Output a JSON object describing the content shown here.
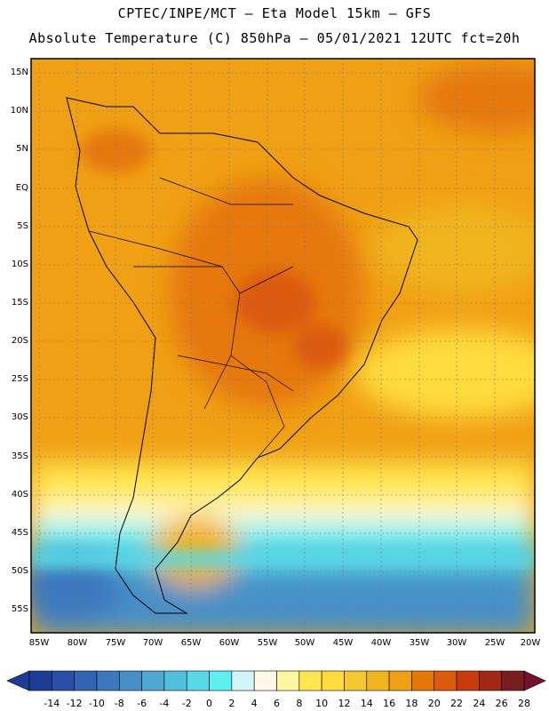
{
  "title_line1": "CPTEC/INPE/MCT –  Eta Model 15km – GFS",
  "title_line2": "Absolute Temperature (C) 850hPa – 05/01/2021 12UTC fct=20h",
  "lat_labels": [
    "15N",
    "10N",
    "5N",
    "EQ",
    "5S",
    "10S",
    "15S",
    "20S",
    "25S",
    "30S",
    "35S",
    "40S",
    "45S",
    "50S",
    "55S"
  ],
  "lon_labels": [
    "85W",
    "80W",
    "75W",
    "70W",
    "65W",
    "60W",
    "55W",
    "50W",
    "45W",
    "40W",
    "35W",
    "30W",
    "25W",
    "20W"
  ],
  "colorbar": {
    "labels": [
      "-14",
      "-12",
      "-10",
      "-8",
      "-6",
      "-4",
      "-2",
      "0",
      "2",
      "4",
      "6",
      "8",
      "10",
      "12",
      "14",
      "16",
      "18",
      "20",
      "22",
      "24",
      "26",
      "28"
    ],
    "colors": [
      "#1e3c96",
      "#2850aa",
      "#3264b4",
      "#3c78be",
      "#4690c8",
      "#50a8d2",
      "#50c0dc",
      "#5ad8e6",
      "#5ff0f0",
      "#d2f5fa",
      "#fff8e6",
      "#fff5a0",
      "#ffe650",
      "#ffdc3c",
      "#f5c832",
      "#f0b41e",
      "#f0a014",
      "#e6780a",
      "#dc5a0a",
      "#c83c0a",
      "#a02814",
      "#781e1e"
    ],
    "low_arrow_color": "#1e3c96",
    "high_arrow_color": "#780f2d"
  }
}
